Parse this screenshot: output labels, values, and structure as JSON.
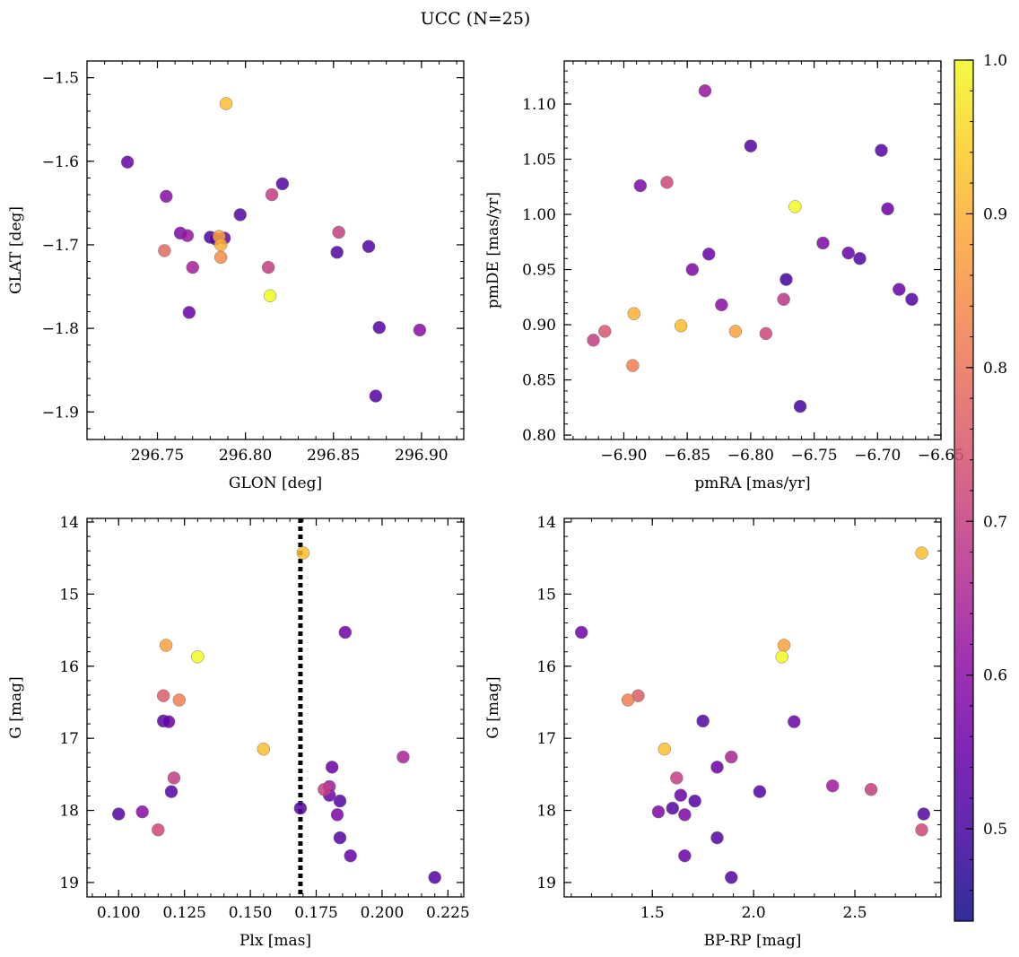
{
  "figure": {
    "title": "UCC (N=25)"
  },
  "colorbar": {
    "cmap": "plasma",
    "vmin": 0.44,
    "vmax": 1.0,
    "ticks": [
      0.5,
      0.6,
      0.7,
      0.8,
      0.9,
      1.0
    ],
    "tick_labels": [
      "0.5",
      "0.6",
      "0.7",
      "0.8",
      "0.9",
      "1.0"
    ]
  },
  "chart_data": [
    {
      "type": "scatter",
      "xlabel": "GLON [deg]",
      "ylabel": "GLAT [deg]",
      "xlim": [
        296.71,
        296.924
      ],
      "ylim": [
        -1.933,
        -1.48
      ],
      "xticks": [
        296.75,
        296.8,
        296.85,
        296.9
      ],
      "xtick_labels": [
        "296.75",
        "296.80",
        "296.85",
        "296.90"
      ],
      "yticks": [
        -1.5,
        -1.6,
        -1.7,
        -1.8,
        -1.9
      ],
      "ytick_labels": [
        "−1.5",
        "−1.6",
        "−1.7",
        "−1.8",
        "−1.9"
      ],
      "x": [
        296.789,
        296.733,
        296.755,
        296.821,
        296.815,
        296.797,
        296.853,
        296.763,
        296.767,
        296.78,
        296.783,
        296.788,
        296.785,
        296.786,
        296.754,
        296.852,
        296.87,
        296.77,
        296.813,
        296.814,
        296.768,
        296.876,
        296.899,
        296.874,
        296.786
      ],
      "y": [
        -1.531,
        -1.601,
        -1.642,
        -1.627,
        -1.64,
        -1.664,
        -1.685,
        -1.686,
        -1.689,
        -1.691,
        -1.693,
        -1.692,
        -1.69,
        -1.7,
        -1.707,
        -1.709,
        -1.702,
        -1.727,
        -1.727,
        -1.761,
        -1.781,
        -1.799,
        -1.802,
        -1.881,
        -1.715
      ],
      "c": [
        0.92,
        0.55,
        0.6,
        0.52,
        0.7,
        0.52,
        0.7,
        0.58,
        0.62,
        0.5,
        0.52,
        0.55,
        0.88,
        0.9,
        0.78,
        0.52,
        0.52,
        0.64,
        0.7,
        1.0,
        0.55,
        0.52,
        0.6,
        0.52,
        0.84
      ]
    },
    {
      "type": "scatter",
      "xlabel": "pmRA [mas/yr]",
      "ylabel": "pmDE [mas/yr]",
      "xlim": [
        -6.947,
        -6.65
      ],
      "ylim": [
        0.796,
        1.139
      ],
      "xticks": [
        -6.9,
        -6.85,
        -6.8,
        -6.75,
        -6.7,
        -6.65
      ],
      "xtick_labels": [
        "−6.90",
        "−6.85",
        "−6.80",
        "−6.75",
        "−6.70",
        "−6.65"
      ],
      "yticks": [
        0.8,
        0.85,
        0.9,
        0.95,
        1.0,
        1.05,
        1.1
      ],
      "ytick_labels": [
        "0.80",
        "0.85",
        "0.90",
        "0.95",
        "1.00",
        "1.05",
        "1.10"
      ],
      "x": [
        -6.836,
        -6.8,
        -6.697,
        -6.887,
        -6.866,
        -6.765,
        -6.692,
        -6.743,
        -6.723,
        -6.714,
        -6.833,
        -6.846,
        -6.772,
        -6.683,
        -6.673,
        -6.823,
        -6.774,
        -6.892,
        -6.855,
        -6.812,
        -6.788,
        -6.915,
        -6.924,
        -6.893,
        -6.761
      ],
      "y": [
        1.112,
        1.062,
        1.058,
        1.026,
        1.029,
        1.007,
        1.005,
        0.974,
        0.965,
        0.96,
        0.964,
        0.95,
        0.941,
        0.932,
        0.923,
        0.918,
        0.923,
        0.91,
        0.899,
        0.894,
        0.892,
        0.894,
        0.886,
        0.863,
        0.826
      ],
      "c": [
        0.62,
        0.52,
        0.52,
        0.58,
        0.72,
        1.0,
        0.55,
        0.58,
        0.55,
        0.52,
        0.55,
        0.58,
        0.5,
        0.55,
        0.52,
        0.6,
        0.68,
        0.9,
        0.92,
        0.88,
        0.72,
        0.75,
        0.7,
        0.82,
        0.5
      ]
    },
    {
      "type": "scatter",
      "xlabel": "Plx [mas]",
      "ylabel": "G [mag]",
      "xlim": [
        0.088,
        0.231
      ],
      "ylim": [
        19.2,
        13.95
      ],
      "xticks": [
        0.1,
        0.125,
        0.15,
        0.175,
        0.2,
        0.225
      ],
      "xtick_labels": [
        "0.100",
        "0.125",
        "0.150",
        "0.175",
        "0.200",
        "0.225"
      ],
      "yticks": [
        14,
        15,
        16,
        17,
        18,
        19
      ],
      "ytick_labels": [
        "14",
        "15",
        "16",
        "17",
        "18",
        "19"
      ],
      "vline": 0.169,
      "x": [
        0.17,
        0.186,
        0.118,
        0.13,
        0.117,
        0.123,
        0.117,
        0.119,
        0.155,
        0.208,
        0.181,
        0.121,
        0.178,
        0.18,
        0.12,
        0.18,
        0.184,
        0.169,
        0.109,
        0.1,
        0.183,
        0.115,
        0.184,
        0.188,
        0.22
      ],
      "y": [
        14.43,
        15.53,
        15.71,
        15.87,
        16.41,
        16.47,
        16.76,
        16.77,
        17.15,
        17.26,
        17.4,
        17.55,
        17.71,
        17.67,
        17.74,
        17.79,
        17.87,
        17.97,
        18.02,
        18.05,
        18.06,
        18.27,
        18.38,
        18.63,
        18.93
      ],
      "c": [
        0.92,
        0.56,
        0.88,
        1.0,
        0.76,
        0.82,
        0.52,
        0.55,
        0.92,
        0.65,
        0.55,
        0.7,
        0.7,
        0.63,
        0.52,
        0.55,
        0.52,
        0.52,
        0.6,
        0.52,
        0.58,
        0.72,
        0.52,
        0.55,
        0.52
      ]
    },
    {
      "type": "scatter",
      "xlabel": "BP-RP [mag]",
      "ylabel": "G [mag]",
      "xlim": [
        1.065,
        2.925
      ],
      "ylim": [
        19.2,
        13.95
      ],
      "xticks": [
        1.5,
        2.0,
        2.5
      ],
      "xtick_labels": [
        "1.5",
        "2.0",
        "2.5"
      ],
      "yticks": [
        14,
        15,
        16,
        17,
        18,
        19
      ],
      "ytick_labels": [
        "14",
        "15",
        "16",
        "17",
        "18",
        "19"
      ],
      "x": [
        2.83,
        1.15,
        2.15,
        2.14,
        1.43,
        1.38,
        1.75,
        2.2,
        1.56,
        1.89,
        1.82,
        1.62,
        2.39,
        2.58,
        2.03,
        1.64,
        1.71,
        1.53,
        1.6,
        1.66,
        2.84,
        2.83,
        1.82,
        1.66,
        1.89
      ],
      "y": [
        14.43,
        15.53,
        15.71,
        15.87,
        16.41,
        16.47,
        16.76,
        16.77,
        17.15,
        17.26,
        17.4,
        17.55,
        17.66,
        17.71,
        17.74,
        17.79,
        17.87,
        18.02,
        17.97,
        18.06,
        18.05,
        18.27,
        18.38,
        18.63,
        18.93
      ],
      "c": [
        0.92,
        0.56,
        0.88,
        1.0,
        0.76,
        0.82,
        0.52,
        0.55,
        0.92,
        0.65,
        0.55,
        0.7,
        0.63,
        0.7,
        0.52,
        0.55,
        0.52,
        0.58,
        0.52,
        0.58,
        0.52,
        0.72,
        0.52,
        0.55,
        0.52
      ]
    }
  ]
}
